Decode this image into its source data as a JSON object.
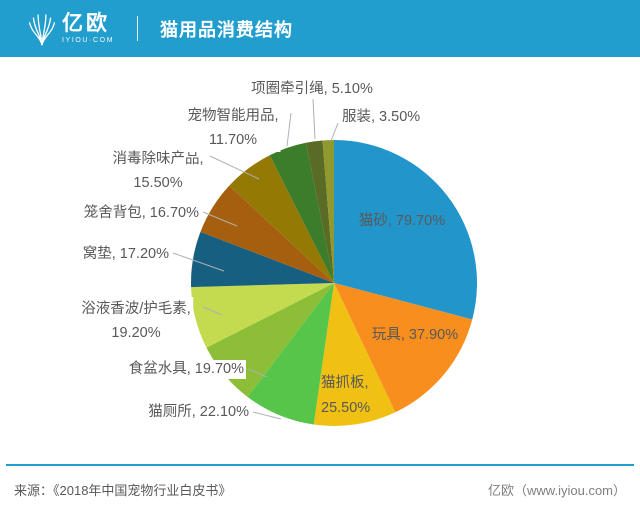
{
  "header": {
    "brand": "亿欧",
    "brand_sub": "IYIOU·COM",
    "title": "猫用品消费结构",
    "bar_color": "#219DCE"
  },
  "footer": {
    "source": "来源：《2018年中国宠物行业白皮书》",
    "brand": "亿欧（www.iyiou.com）",
    "divider_color": "#219DCE"
  },
  "chart_data": {
    "type": "pie",
    "title": "猫用品消费结构",
    "start_angle_deg": 0,
    "direction": "clockwise",
    "label_color": "#595959",
    "leader_line_color": "#B0B0B0",
    "note": "percentages are multi-select shares; pie slice angles are proportional to value/sum(values)",
    "slices": [
      {
        "label": "猫砂",
        "value": 79.7,
        "pct": "79.70%",
        "color": "#2295CB",
        "lines": [
          "猫砂, 79.70%"
        ]
      },
      {
        "label": "玩具",
        "value": 37.9,
        "pct": "37.90%",
        "color": "#F78E1E",
        "lines": [
          "玩具, 37.90%"
        ]
      },
      {
        "label": "猫抓板",
        "value": 25.5,
        "pct": "25.50%",
        "color": "#F0C013",
        "lines": [
          "猫抓板,",
          "25.50%"
        ]
      },
      {
        "label": "猫厕所",
        "value": 22.1,
        "pct": "22.10%",
        "color": "#57C549",
        "lines": [
          "猫厕所, 22.10%"
        ]
      },
      {
        "label": "食盆水具",
        "value": 19.7,
        "pct": "19.70%",
        "color": "#8CBE37",
        "lines": [
          "食盆水具, 19.70%"
        ]
      },
      {
        "label": "浴液香波/护毛素",
        "value": 19.2,
        "pct": "19.20%",
        "color": "#C4DB50",
        "lines": [
          "浴液香波/护毛素,",
          "19.20%"
        ]
      },
      {
        "label": "窝垫",
        "value": 17.2,
        "pct": "17.20%",
        "color": "#175F80",
        "lines": [
          "窝垫, 17.20%"
        ]
      },
      {
        "label": "笼舍背包",
        "value": 16.7,
        "pct": "16.70%",
        "color": "#A55F0E",
        "lines": [
          "笼舍背包, 16.70%"
        ]
      },
      {
        "label": "消毒除味产品",
        "value": 15.5,
        "pct": "15.50%",
        "color": "#947A04",
        "lines": [
          "消毒除味产品,",
          "15.50%"
        ]
      },
      {
        "label": "宠物智能用品",
        "value": 11.7,
        "pct": "11.70%",
        "color": "#3B7D2A",
        "lines": [
          "宠物智能用品,",
          "11.70%"
        ]
      },
      {
        "label": "项圈牵引绳",
        "value": 5.1,
        "pct": "5.10%",
        "color": "#596B24",
        "lines": [
          "项圈牵引绳, 5.10%"
        ]
      },
      {
        "label": "服装",
        "value": 3.5,
        "pct": "3.50%",
        "color": "#90992E",
        "lines": [
          "服装, 3.50%"
        ]
      }
    ]
  }
}
